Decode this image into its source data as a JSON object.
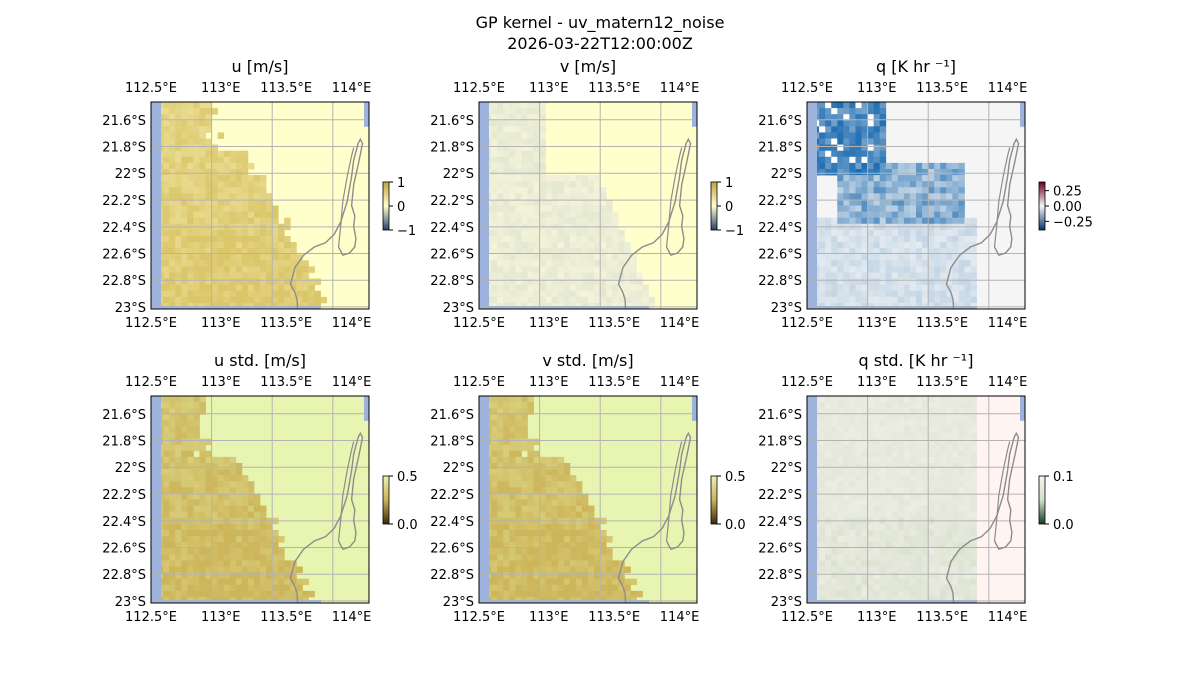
{
  "figure": {
    "title_line1": "GP kernel - uv_matern12_noise",
    "title_line2": "2026-03-22T12:00:00Z"
  },
  "colors": {
    "ocean": "#ffffff",
    "land": "#9db3de",
    "coast": "#8c8c8c",
    "grid": "#b3b3b3"
  },
  "chart_data": [
    {
      "type": "heatmap",
      "id": "u",
      "title": "u [m/s]",
      "x_ticks": [
        "112.5°E",
        "113°E",
        "113.5°E",
        "114°E"
      ],
      "y_ticks": [
        "21.6°S",
        "21.8°S",
        "22°S",
        "22.2°S",
        "22.4°S",
        "22.6°S",
        "22.8°S",
        "23°S"
      ],
      "colorbar": {
        "ticks": [
          "1",
          "0",
          "−1"
        ],
        "range": [
          -1,
          1
        ],
        "low_color": "#21426b",
        "mid_color": "#ffffd0",
        "high_color": "#c2a23d"
      },
      "field": "mean-u",
      "ocean_value_color": "#ffffcc",
      "field_color": "#dbc66a"
    },
    {
      "type": "heatmap",
      "id": "v",
      "title": "v [m/s]",
      "x_ticks": [
        "112.5°E",
        "113°E",
        "113.5°E",
        "114°E"
      ],
      "y_ticks": [
        "21.6°S",
        "21.8°S",
        "22°S",
        "22.2°S",
        "22.4°S",
        "22.6°S",
        "22.8°S",
        "23°S"
      ],
      "colorbar": {
        "ticks": [
          "1",
          "0",
          "−1"
        ],
        "range": [
          -1,
          1
        ],
        "low_color": "#21426b",
        "mid_color": "#ffffd0",
        "high_color": "#c2a23d"
      },
      "field": "mean-v",
      "ocean_value_color": "#ffffcc",
      "field_color": "#e3e5d6"
    },
    {
      "type": "heatmap",
      "id": "q",
      "title": "q [K hr ⁻¹]",
      "x_ticks": [
        "112.5°E",
        "113°E",
        "113.5°E",
        "114°E"
      ],
      "y_ticks": [
        "21.6°S",
        "21.8°S",
        "22°S",
        "22.2°S",
        "22.4°S",
        "22.6°S",
        "22.8°S",
        "23°S"
      ],
      "colorbar": {
        "ticks": [
          "0.25",
          "0.00",
          "−0.25"
        ],
        "range": [
          -0.35,
          0.35
        ],
        "low_color": "#08306b",
        "mid_color": "#f5f5f5",
        "high_color": "#67001f"
      },
      "field": "mean-q",
      "ocean_value_color": "#f5f5f5",
      "field_color": "#2e7ebc"
    },
    {
      "type": "heatmap",
      "id": "u_std",
      "title": "u std. [m/s]",
      "x_ticks": [
        "112.5°E",
        "113°E",
        "113.5°E",
        "114°E"
      ],
      "y_ticks": [
        "21.6°S",
        "21.8°S",
        "22°S",
        "22.2°S",
        "22.4°S",
        "22.6°S",
        "22.8°S",
        "23°S"
      ],
      "colorbar": {
        "ticks": [
          "0.5",
          "0.0"
        ],
        "range": [
          0,
          0.5
        ],
        "low_color": "#3c2a0e",
        "mid_color": "#c8b25a",
        "high_color": "#e8f4b0"
      },
      "field": "std-uv",
      "ocean_value_color": "#e8f5b0",
      "field_color": "#cdb55a"
    },
    {
      "type": "heatmap",
      "id": "v_std",
      "title": "v std. [m/s]",
      "x_ticks": [
        "112.5°E",
        "113°E",
        "113.5°E",
        "114°E"
      ],
      "y_ticks": [
        "21.6°S",
        "21.8°S",
        "22°S",
        "22.2°S",
        "22.4°S",
        "22.6°S",
        "22.8°S",
        "23°S"
      ],
      "colorbar": {
        "ticks": [
          "0.5",
          "0.0"
        ],
        "range": [
          0,
          0.5
        ],
        "low_color": "#3c2a0e",
        "mid_color": "#c8b25a",
        "high_color": "#e8f4b0"
      },
      "field": "std-uv",
      "ocean_value_color": "#e8f5b0",
      "field_color": "#cdb55a"
    },
    {
      "type": "heatmap",
      "id": "q_std",
      "title": "q std. [K hr ⁻¹]",
      "x_ticks": [
        "112.5°E",
        "113°E",
        "113.5°E",
        "114°E"
      ],
      "y_ticks": [
        "21.6°S",
        "21.8°S",
        "22°S",
        "22.2°S",
        "22.4°S",
        "22.6°S",
        "22.8°S",
        "23°S"
      ],
      "colorbar": {
        "ticks": [
          "0.1",
          "0.0"
        ],
        "range": [
          0,
          0.1
        ],
        "low_color": "#1b3b2b",
        "mid_color": "#cfe0c8",
        "high_color": "#fff1ee"
      },
      "field": "std-q",
      "ocean_value_color": "#fff4f2",
      "field_color": "#e7e2d6"
    }
  ]
}
